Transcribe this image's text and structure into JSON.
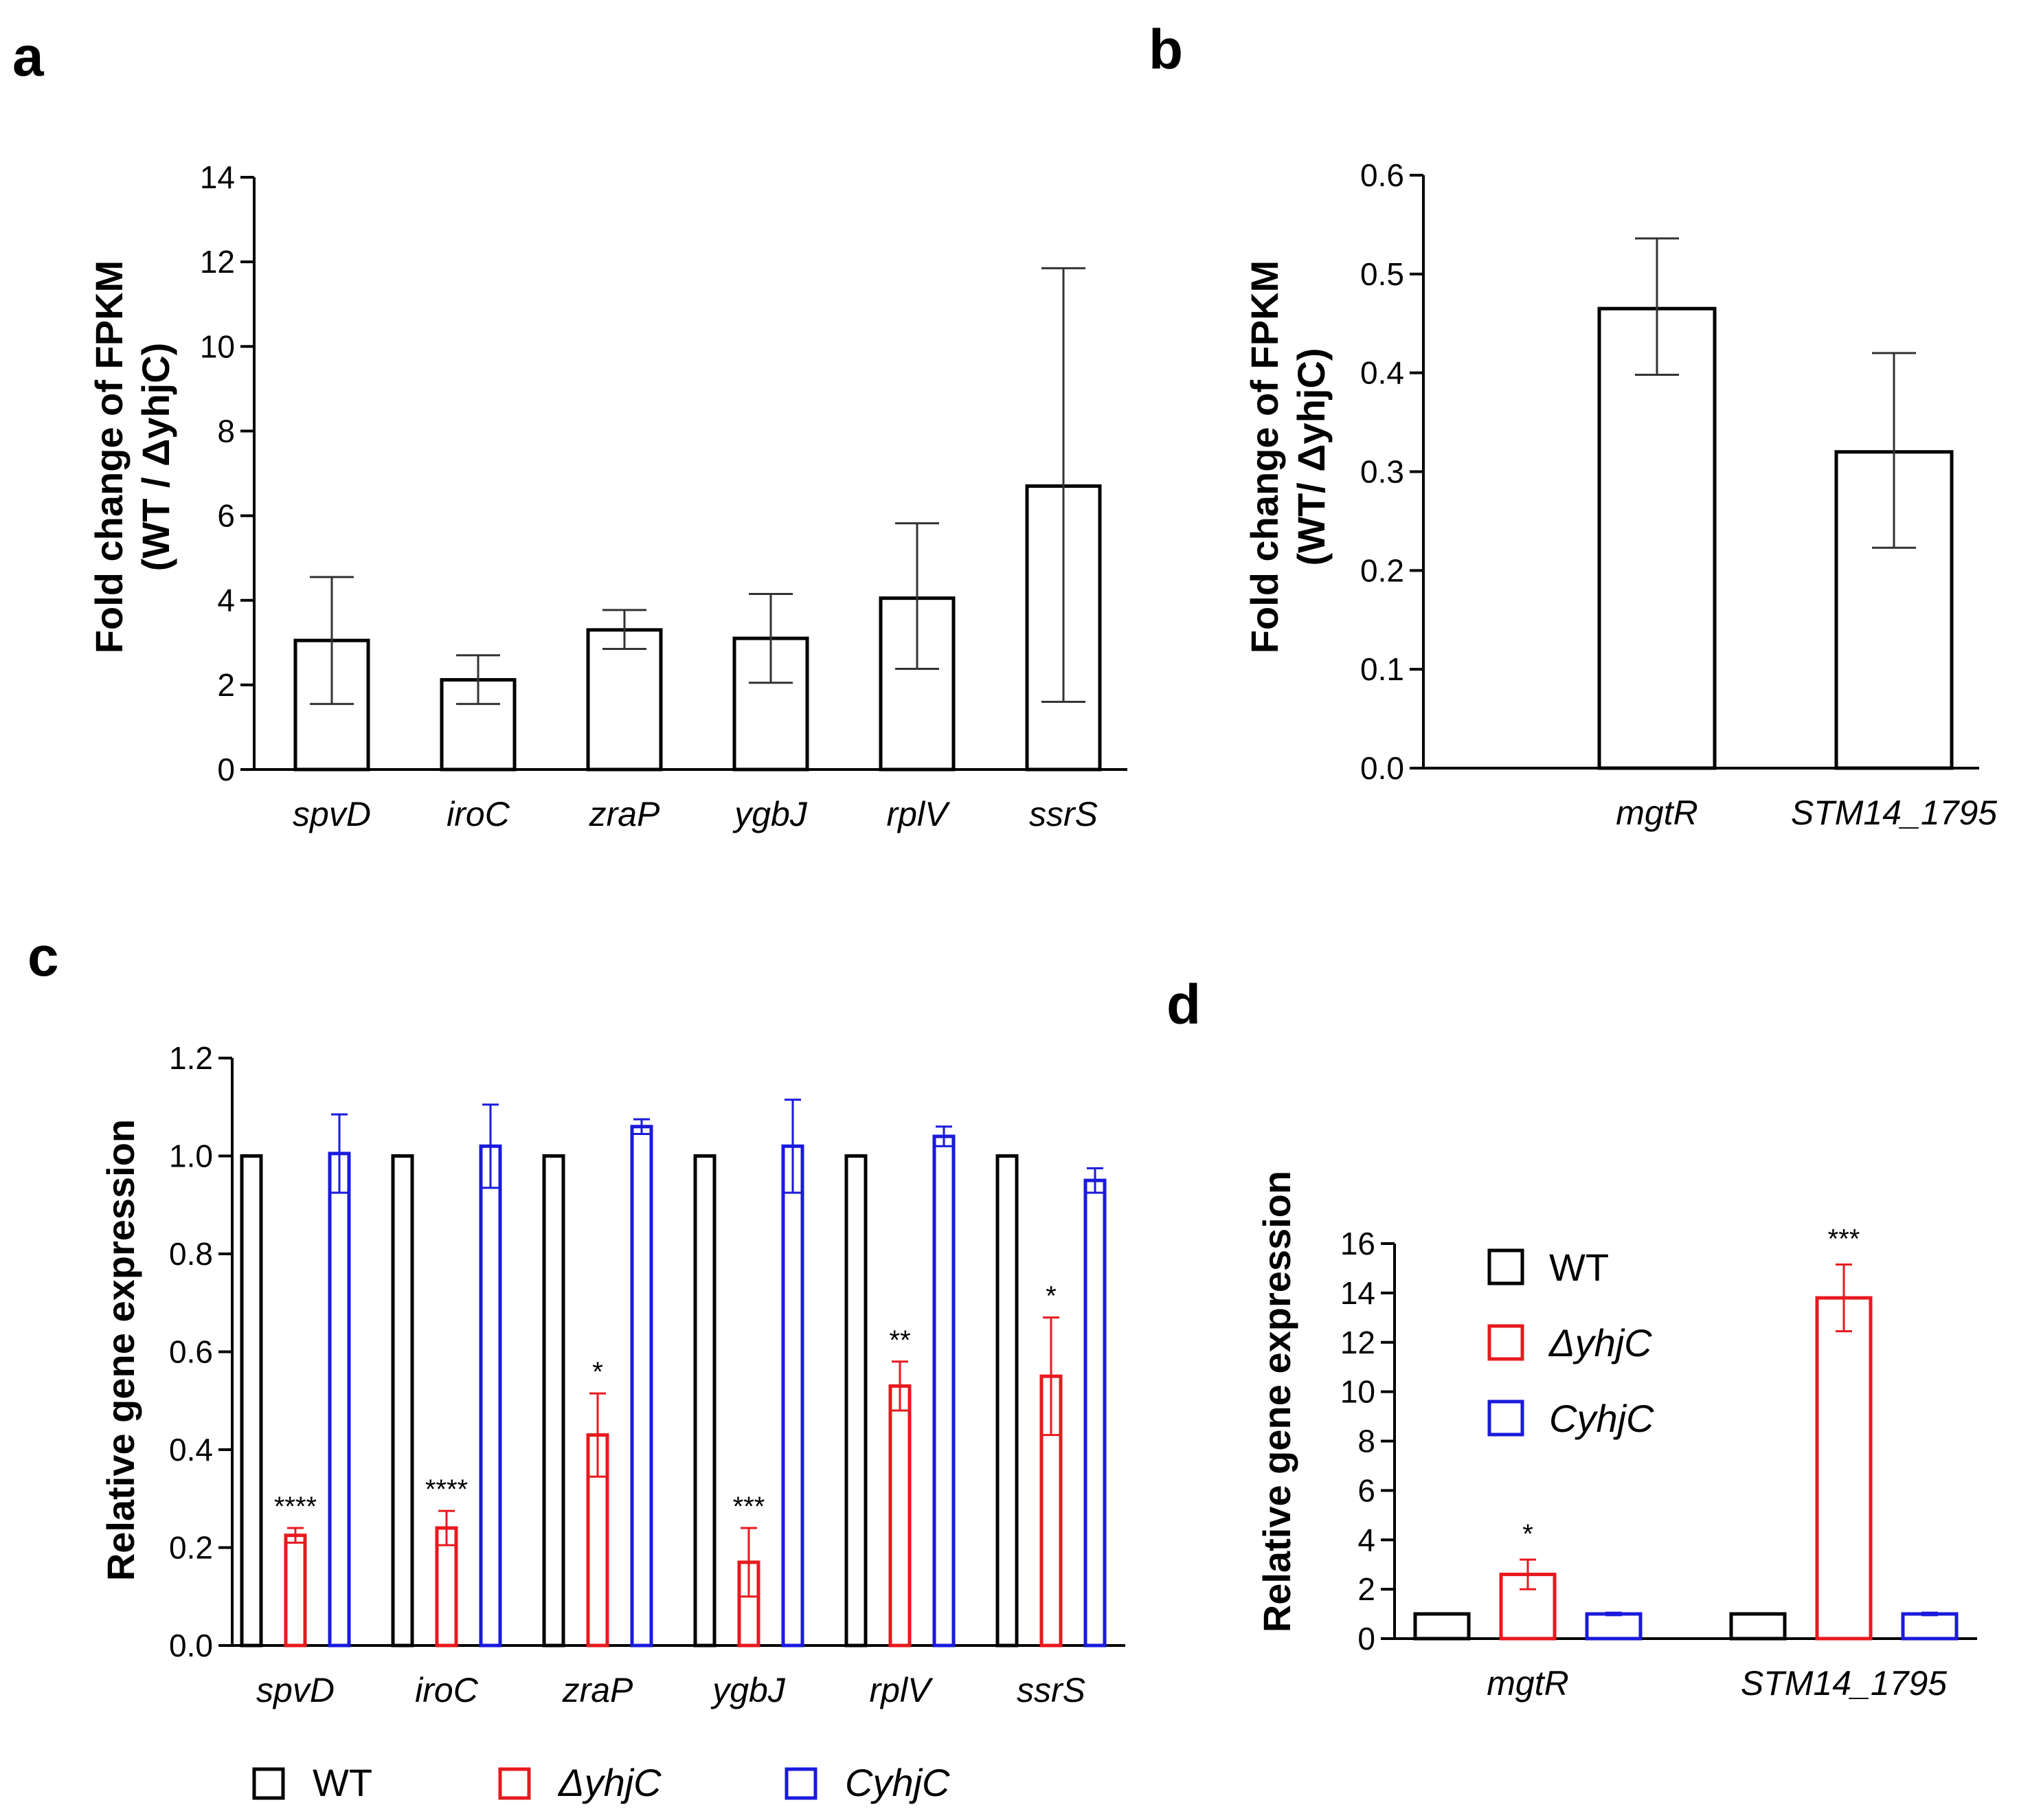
{
  "figure_labels": [
    "a",
    "b",
    "c",
    "d"
  ],
  "chart_data": [
    {
      "panel": "a",
      "type": "bar",
      "categories": [
        "spvD",
        "iroC",
        "zraP",
        "ygbJ",
        "rplV",
        "ssrS"
      ],
      "values": [
        3.05,
        2.12,
        3.3,
        3.1,
        4.05,
        6.7
      ],
      "error_low": [
        1.55,
        1.55,
        2.85,
        2.05,
        2.38,
        1.6
      ],
      "error_high": [
        4.55,
        2.7,
        3.77,
        4.15,
        5.82,
        11.85
      ],
      "ylabel_line1": "Fold change of FPKM",
      "ylabel_line2": "(WT / ΔyhjC)",
      "ylim": [
        0,
        14
      ],
      "yticks": [
        "0",
        "2",
        "4",
        "6",
        "8",
        "10",
        "12",
        "14"
      ]
    },
    {
      "panel": "b",
      "type": "bar",
      "categories": [
        "mgtR",
        "STM14_1795"
      ],
      "values": [
        0.465,
        0.32
      ],
      "error_low": [
        0.398,
        0.223
      ],
      "error_high": [
        0.536,
        0.42
      ],
      "ylabel_line1": "Fold change of FPKM",
      "ylabel_line2": "(WT/ ΔyhjC)",
      "ylim": [
        0,
        0.6
      ],
      "yticks": [
        "0.0",
        "0.1",
        "0.2",
        "0.3",
        "0.4",
        "0.5",
        "0.6"
      ]
    },
    {
      "panel": "c",
      "type": "bar",
      "categories": [
        "spvD",
        "iroC",
        "zraP",
        "ygbJ",
        "rplV",
        "ssrS"
      ],
      "series": [
        {
          "name": "WT",
          "color": "#000000",
          "values": [
            1.0,
            1.0,
            1.0,
            1.0,
            1.0,
            1.0
          ],
          "errors": [
            0,
            0,
            0,
            0,
            0,
            0
          ]
        },
        {
          "name": "ΔyhjC",
          "color": "#e8191f",
          "values": [
            0.225,
            0.24,
            0.43,
            0.17,
            0.53,
            0.55
          ],
          "errors": [
            0.015,
            0.035,
            0.085,
            0.07,
            0.05,
            0.12
          ]
        },
        {
          "name": "CyhjC",
          "color": "#1a1adc",
          "values": [
            1.005,
            1.02,
            1.06,
            1.02,
            1.04,
            0.95
          ],
          "errors": [
            0.08,
            0.085,
            0.015,
            0.095,
            0.02,
            0.025
          ]
        }
      ],
      "significance": [
        "****",
        "****",
        "*",
        "***",
        "**",
        "*"
      ],
      "ylabel": "Relative gene expression",
      "ylim": [
        0,
        1.2
      ],
      "yticks": [
        "0.0",
        "0.2",
        "0.4",
        "0.6",
        "0.8",
        "1.0",
        "1.2"
      ],
      "legend": [
        "WT",
        "ΔyhjC",
        "CyhjC"
      ]
    },
    {
      "panel": "d",
      "type": "bar",
      "categories": [
        "mgtR",
        "STM14_1795"
      ],
      "series": [
        {
          "name": "WT",
          "color": "#000000",
          "values": [
            1.0,
            1.0
          ],
          "errors": [
            0,
            0
          ]
        },
        {
          "name": "ΔyhjC",
          "color": "#e8191f",
          "values": [
            2.6,
            13.8
          ],
          "errors": [
            0.6,
            1.35
          ]
        },
        {
          "name": "CyhjC",
          "color": "#1a1adc",
          "values": [
            1.0,
            1.0
          ],
          "errors": [
            0.05,
            0.05
          ]
        }
      ],
      "significance": [
        "*",
        "***"
      ],
      "ylabel": "Relative gene expression",
      "ylim": [
        0,
        16
      ],
      "yticks": [
        "0",
        "2",
        "4",
        "6",
        "8",
        "10",
        "12",
        "14",
        "16"
      ],
      "legend": [
        "WT",
        "ΔyhjC",
        "CyhjC"
      ]
    }
  ]
}
